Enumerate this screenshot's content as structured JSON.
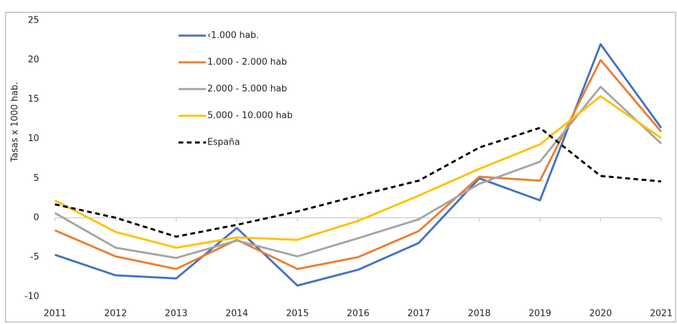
{
  "chart_data": {
    "type": "line",
    "y_label": "Tasas x 1000 hab.",
    "categories": [
      "2011",
      "2012",
      "2013",
      "2014",
      "2015",
      "2016",
      "2017",
      "2018",
      "2019",
      "2020",
      "2021"
    ],
    "series": [
      {
        "name": "‹1.000 hab.",
        "color": "#4472c4",
        "values": [
          -4.7,
          -7.3,
          -7.7,
          -1.3,
          -8.6,
          -6.6,
          -3.2,
          5.0,
          2.2,
          22.0,
          11.4
        ]
      },
      {
        "name": "1.000 - 2.000 hab",
        "color": "#ed7d31",
        "values": [
          -1.6,
          -4.9,
          -6.5,
          -2.8,
          -6.5,
          -5.0,
          -1.7,
          5.2,
          4.7,
          20.0,
          10.9
        ]
      },
      {
        "name": "2.000 - 5.000 hab",
        "color": "#a5a5a5",
        "values": [
          0.6,
          -3.8,
          -5.1,
          -2.9,
          -4.9,
          -2.6,
          -0.2,
          4.3,
          7.1,
          16.6,
          9.4
        ]
      },
      {
        "name": "5.000 - 10.000 hab",
        "color": "#ffc000",
        "values": [
          2.2,
          -1.8,
          -3.8,
          -2.5,
          -2.8,
          -0.4,
          2.8,
          6.2,
          9.3,
          15.4,
          10.1
        ]
      },
      {
        "name": "España",
        "color": "#000000",
        "dashed": true,
        "values": [
          1.7,
          0.0,
          -2.4,
          -0.9,
          0.8,
          2.8,
          4.7,
          8.9,
          11.4,
          5.3,
          4.6
        ]
      }
    ],
    "ylim": [
      -10,
      25
    ],
    "yticks": [
      -10,
      -5,
      0,
      5,
      10,
      15,
      20,
      25
    ],
    "grid": false
  }
}
